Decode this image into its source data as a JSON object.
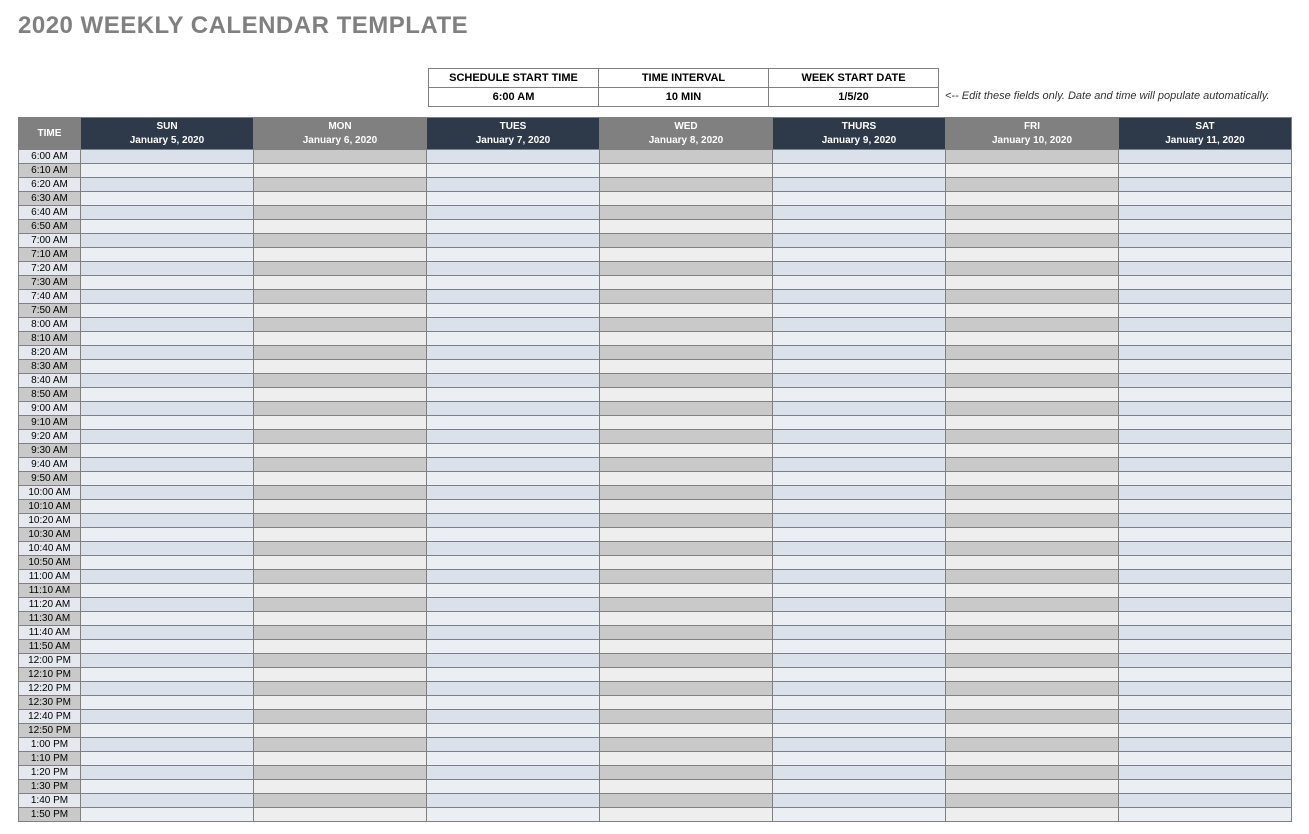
{
  "title": "2020 WEEKLY CALENDAR TEMPLATE",
  "settings": {
    "headers": [
      "SCHEDULE START TIME",
      "TIME INTERVAL",
      "WEEK START DATE"
    ],
    "values": [
      "6:00 AM",
      "10 MIN",
      "1/5/20"
    ]
  },
  "hint": "<-- Edit these fields only. Date and time will populate automatically.",
  "colors": {
    "title_color": "#808080",
    "header_dark": "#2e3a4a",
    "header_gray": "#808080",
    "header_text": "#ffffff",
    "border": "#808080",
    "time_even_bg": "#e5e8ee",
    "time_odd_bg": "#c9c9c9",
    "darkcol_even_bg": "#dbe1ea",
    "darkcol_odd_bg": "#ebeef2",
    "graycol_even_bg": "#c9c9c9",
    "graycol_odd_bg": "#eeeeee"
  },
  "calendar": {
    "time_header": "TIME",
    "time_col_width": 62,
    "day_col_width": 173,
    "days": [
      {
        "name": "SUN",
        "date": "January 5, 2020",
        "style": "dark"
      },
      {
        "name": "MON",
        "date": "January 6, 2020",
        "style": "gray"
      },
      {
        "name": "TUES",
        "date": "January 7, 2020",
        "style": "dark"
      },
      {
        "name": "WED",
        "date": "January 8, 2020",
        "style": "gray"
      },
      {
        "name": "THURS",
        "date": "January 9, 2020",
        "style": "dark"
      },
      {
        "name": "FRI",
        "date": "January 10, 2020",
        "style": "gray"
      },
      {
        "name": "SAT",
        "date": "January 11, 2020",
        "style": "dark"
      }
    ],
    "times": [
      "6:00 AM",
      "6:10 AM",
      "6:20 AM",
      "6:30 AM",
      "6:40 AM",
      "6:50 AM",
      "7:00 AM",
      "7:10 AM",
      "7:20 AM",
      "7:30 AM",
      "7:40 AM",
      "7:50 AM",
      "8:00 AM",
      "8:10 AM",
      "8:20 AM",
      "8:30 AM",
      "8:40 AM",
      "8:50 AM",
      "9:00 AM",
      "9:10 AM",
      "9:20 AM",
      "9:30 AM",
      "9:40 AM",
      "9:50 AM",
      "10:00 AM",
      "10:10 AM",
      "10:20 AM",
      "10:30 AM",
      "10:40 AM",
      "10:50 AM",
      "11:00 AM",
      "11:10 AM",
      "11:20 AM",
      "11:30 AM",
      "11:40 AM",
      "11:50 AM",
      "12:00 PM",
      "12:10 PM",
      "12:20 PM",
      "12:30 PM",
      "12:40 PM",
      "12:50 PM",
      "1:00 PM",
      "1:10 PM",
      "1:20 PM",
      "1:30 PM",
      "1:40 PM",
      "1:50 PM"
    ]
  }
}
